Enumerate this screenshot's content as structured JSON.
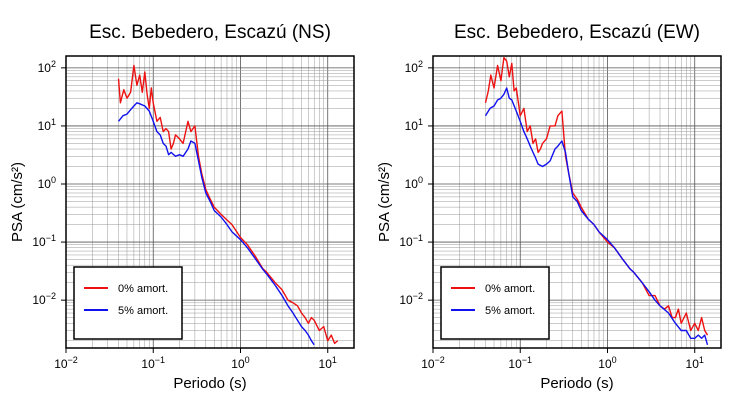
{
  "chart_data": [
    {
      "type": "line",
      "title": "Esc. Bebedero, Escazú (NS)",
      "xlabel": "Periodo (s)",
      "ylabel": "PSA (cm/s²)",
      "xscale": "log",
      "yscale": "log",
      "xlim": [
        0.01,
        20
      ],
      "ylim": [
        0.0015,
        160
      ],
      "grid": true,
      "legend_position": "bottom-left",
      "x_ticks": [
        {
          "value": 0.01,
          "base": "10",
          "exp": "−2"
        },
        {
          "value": 0.1,
          "base": "10",
          "exp": "−1"
        },
        {
          "value": 1,
          "base": "10",
          "exp": "0"
        },
        {
          "value": 10,
          "base": "10",
          "exp": "1"
        }
      ],
      "y_ticks": [
        {
          "value": 0.01,
          "base": "10",
          "exp": "−2"
        },
        {
          "value": 0.1,
          "base": "10",
          "exp": "−1"
        },
        {
          "value": 1,
          "base": "10",
          "exp": "0"
        },
        {
          "value": 10,
          "base": "10",
          "exp": "1"
        },
        {
          "value": 100,
          "base": "10",
          "exp": "2"
        }
      ],
      "series": [
        {
          "name": "0% amort.",
          "color": "#ee1111",
          "x": [
            0.04,
            0.042,
            0.046,
            0.05,
            0.055,
            0.06,
            0.065,
            0.07,
            0.075,
            0.08,
            0.085,
            0.09,
            0.095,
            0.1,
            0.11,
            0.12,
            0.13,
            0.14,
            0.15,
            0.16,
            0.17,
            0.18,
            0.2,
            0.22,
            0.25,
            0.27,
            0.3,
            0.33,
            0.36,
            0.4,
            0.45,
            0.5,
            0.6,
            0.7,
            0.8,
            1.0,
            1.2,
            1.5,
            1.8,
            2.0,
            2.5,
            3.0,
            3.5,
            4.0,
            4.5,
            5.0,
            5.5,
            6.0,
            6.5,
            7.0,
            8.0,
            9.0,
            10.0,
            11.0,
            12.0,
            13.0
          ],
          "y": [
            65,
            25,
            42,
            30,
            38,
            110,
            50,
            75,
            38,
            85,
            35,
            20,
            45,
            25,
            12,
            14,
            8,
            9,
            8,
            4,
            5,
            7,
            6,
            5,
            12,
            8,
            10,
            3,
            1.5,
            0.8,
            0.55,
            0.4,
            0.3,
            0.24,
            0.2,
            0.12,
            0.09,
            0.055,
            0.035,
            0.03,
            0.02,
            0.015,
            0.01,
            0.009,
            0.008,
            0.006,
            0.005,
            0.004,
            0.005,
            0.0045,
            0.003,
            0.0035,
            0.002,
            0.0025,
            0.0018,
            0.002
          ]
        },
        {
          "name": "5% amort.",
          "color": "#1111ee",
          "x": [
            0.04,
            0.045,
            0.05,
            0.055,
            0.06,
            0.065,
            0.07,
            0.08,
            0.09,
            0.1,
            0.11,
            0.12,
            0.13,
            0.14,
            0.15,
            0.16,
            0.18,
            0.2,
            0.22,
            0.25,
            0.27,
            0.3,
            0.33,
            0.36,
            0.4,
            0.45,
            0.5,
            0.6,
            0.7,
            0.8,
            1.0,
            1.2,
            1.5,
            1.8,
            2.0,
            2.5,
            3.0,
            3.5,
            4.0,
            4.5,
            5.0,
            5.5,
            6.0,
            6.5,
            7.0
          ],
          "y": [
            12,
            15,
            16,
            19,
            22,
            25,
            24,
            22,
            18,
            12,
            8,
            7,
            5,
            4.5,
            3.2,
            3.5,
            3.0,
            3.2,
            3.0,
            4.0,
            5.5,
            5.0,
            2.5,
            1.3,
            0.7,
            0.5,
            0.35,
            0.27,
            0.2,
            0.15,
            0.11,
            0.08,
            0.05,
            0.034,
            0.028,
            0.018,
            0.012,
            0.008,
            0.006,
            0.0045,
            0.0035,
            0.003,
            0.0025,
            0.002,
            0.0017
          ]
        }
      ]
    },
    {
      "type": "line",
      "title": "Esc. Bebedero, Escazú (EW)",
      "xlabel": "Periodo (s)",
      "ylabel": "PSA (cm/s²)",
      "xscale": "log",
      "yscale": "log",
      "xlim": [
        0.01,
        20
      ],
      "ylim": [
        0.0015,
        160
      ],
      "grid": true,
      "legend_position": "bottom-left",
      "x_ticks": [
        {
          "value": 0.01,
          "base": "10",
          "exp": "−2"
        },
        {
          "value": 0.1,
          "base": "10",
          "exp": "−1"
        },
        {
          "value": 1,
          "base": "10",
          "exp": "0"
        },
        {
          "value": 10,
          "base": "10",
          "exp": "1"
        }
      ],
      "y_ticks": [
        {
          "value": 0.01,
          "base": "10",
          "exp": "−2"
        },
        {
          "value": 0.1,
          "base": "10",
          "exp": "−1"
        },
        {
          "value": 1,
          "base": "10",
          "exp": "0"
        },
        {
          "value": 10,
          "base": "10",
          "exp": "1"
        },
        {
          "value": 100,
          "base": "10",
          "exp": "2"
        }
      ],
      "series": [
        {
          "name": "0% amort.",
          "color": "#ee1111",
          "x": [
            0.04,
            0.043,
            0.046,
            0.05,
            0.055,
            0.06,
            0.065,
            0.07,
            0.075,
            0.08,
            0.085,
            0.09,
            0.1,
            0.11,
            0.12,
            0.13,
            0.14,
            0.15,
            0.16,
            0.17,
            0.18,
            0.2,
            0.22,
            0.25,
            0.27,
            0.3,
            0.33,
            0.36,
            0.4,
            0.45,
            0.5,
            0.6,
            0.7,
            0.8,
            1.0,
            1.2,
            1.5,
            1.8,
            2.0,
            2.5,
            3.0,
            3.5,
            4.0,
            4.5,
            5.0,
            5.5,
            6.0,
            6.5,
            7.0,
            8.0,
            9.0,
            10.0,
            11.0,
            12.0,
            13.0,
            14.0
          ],
          "y": [
            25,
            40,
            75,
            45,
            110,
            60,
            150,
            130,
            70,
            120,
            40,
            45,
            15,
            20,
            8,
            10,
            5,
            6,
            3.5,
            4,
            5,
            6,
            10,
            10,
            15,
            18,
            3,
            1.5,
            0.7,
            0.55,
            0.4,
            0.25,
            0.2,
            0.15,
            0.1,
            0.08,
            0.05,
            0.035,
            0.03,
            0.02,
            0.012,
            0.012,
            0.008,
            0.007,
            0.008,
            0.005,
            0.005,
            0.007,
            0.004,
            0.006,
            0.003,
            0.004,
            0.003,
            0.005,
            0.003,
            0.0025
          ]
        },
        {
          "name": "5% amort.",
          "color": "#1111ee",
          "x": [
            0.04,
            0.045,
            0.05,
            0.055,
            0.06,
            0.065,
            0.07,
            0.075,
            0.08,
            0.09,
            0.1,
            0.11,
            0.12,
            0.13,
            0.14,
            0.15,
            0.16,
            0.18,
            0.2,
            0.22,
            0.25,
            0.27,
            0.3,
            0.33,
            0.36,
            0.4,
            0.45,
            0.5,
            0.6,
            0.7,
            0.8,
            1.0,
            1.2,
            1.5,
            1.8,
            2.0,
            2.5,
            3.0,
            3.5,
            4.0,
            5.0,
            6.0,
            7.0,
            8.0,
            9.0,
            10.0,
            11.0,
            12.0,
            13.0,
            14.0
          ],
          "y": [
            15,
            20,
            22,
            28,
            30,
            35,
            45,
            30,
            28,
            18,
            12,
            8,
            6,
            4.5,
            3.5,
            2.8,
            2.2,
            2.0,
            2.2,
            2.5,
            4.0,
            4.5,
            5.5,
            3.5,
            1.5,
            0.6,
            0.5,
            0.35,
            0.25,
            0.2,
            0.15,
            0.11,
            0.08,
            0.05,
            0.035,
            0.03,
            0.02,
            0.014,
            0.01,
            0.008,
            0.006,
            0.004,
            0.003,
            0.003,
            0.0022,
            0.0022,
            0.0025,
            0.0022,
            0.0025,
            0.0017
          ]
        }
      ]
    }
  ]
}
